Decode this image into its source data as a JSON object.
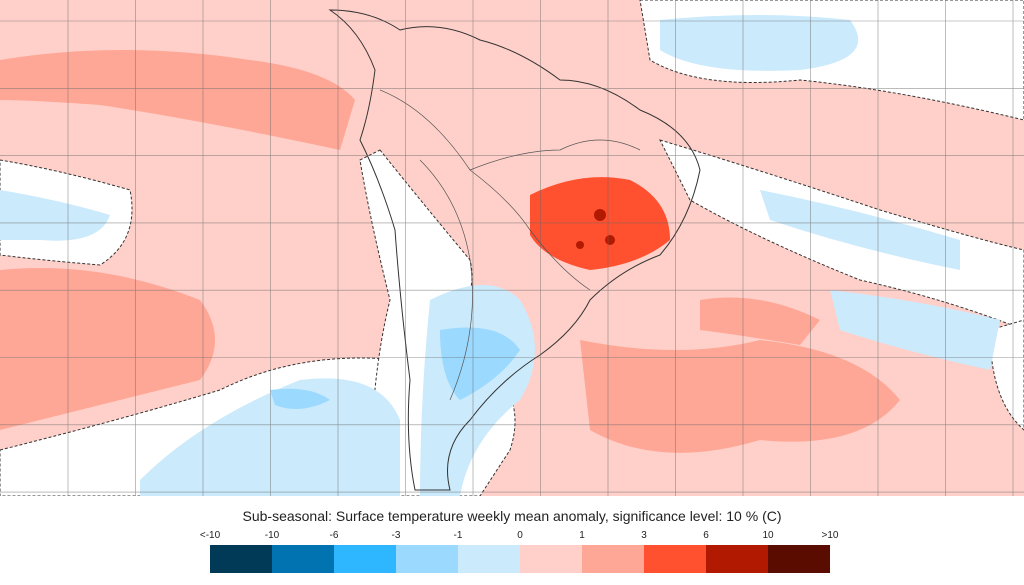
{
  "title": "Sub-seasonal: Surface temperature weekly mean anomaly, significance level: 10 % (C)",
  "legend": {
    "labels": [
      "<-10",
      "-10",
      "-6",
      "-3",
      "-1",
      "0",
      "1",
      "3",
      "6",
      "10",
      ">10"
    ],
    "colors": [
      "#003a57",
      "#0073b0",
      "#2eb6ff",
      "#9bd9ff",
      "#cbeafc",
      "#ffd0c9",
      "#ffa796",
      "#ff5030",
      "#b11a00",
      "#5a0c00"
    ]
  },
  "map": {
    "region": "South America and surrounding oceans",
    "background_color": "#ffd0c9",
    "non_significant_color": "#ffffff"
  }
}
